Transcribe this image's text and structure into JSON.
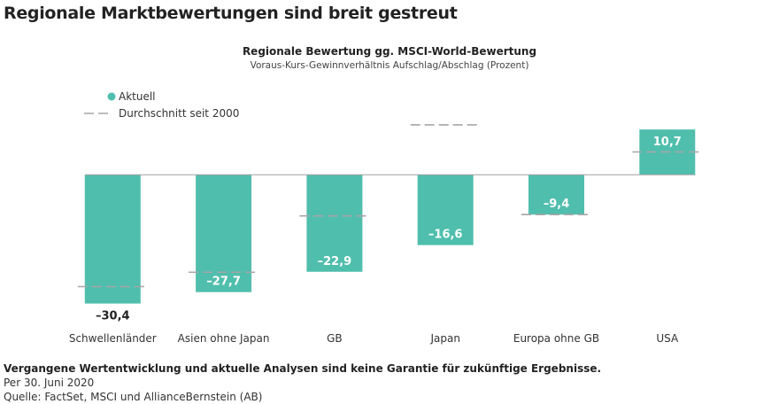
{
  "page_title": "Regionale Marktbewertungen sind breit gestreut",
  "footnotes": {
    "disclaimer": "Vergangene Wertentwicklung und aktuelle Analysen sind keine Garantie für zukünftige Ergebnisse.",
    "date": "Per 30. Juni 2020",
    "source": "Quelle: FactSet, MSCI und AllianceBernstein (AB)"
  },
  "chart_data": {
    "type": "bar",
    "title": "Regionale Bewertung gg. MSCI-World-Bewertung",
    "subtitle": "Voraus-Kurs-Gewinnverhältnis Aufschlag/Abschlag (Prozent)",
    "categories": [
      "Schwellenländer",
      "Asien ohne Japan",
      "GB",
      "Japan",
      "Europa ohne GB",
      "USA"
    ],
    "series": [
      {
        "name": "Aktuell",
        "values": [
          -30.4,
          -27.7,
          -22.9,
          -16.6,
          -9.4,
          10.7
        ],
        "labels": [
          "–30,4",
          "–27,7",
          "–22,9",
          "–16,6",
          "–9,4",
          "10,7"
        ],
        "color": "#50bead"
      },
      {
        "name": "Durchschnitt seit 2000",
        "values": [
          -26.4,
          -23.0,
          -9.7,
          11.8,
          -9.4,
          5.4
        ],
        "color": "#a6a6a6",
        "style": "dashed"
      }
    ],
    "legend": "top-left",
    "grid": false,
    "ylim": [
      -32,
      14
    ]
  }
}
